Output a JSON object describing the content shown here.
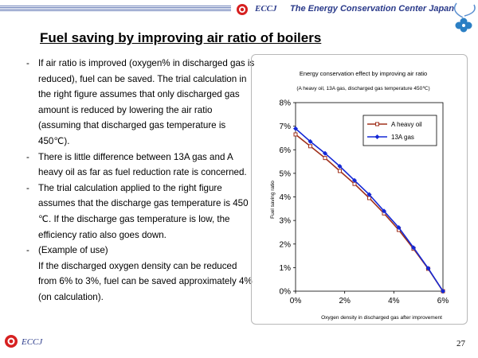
{
  "header": {
    "org_short": "ECCJ",
    "org_name": "The Energy Conservation Center Japan"
  },
  "title": "Fuel saving by improving air ratio of boilers",
  "body": [
    {
      "bullet": "-",
      "text": "If air ratio is improved (oxygen% in discharged gas is reduced), fuel can be saved. The trial calculation in the right figure assumes that only discharged gas amount is reduced by lowering the air ratio (assuming that discharged gas temperature is 450℃)."
    },
    {
      "bullet": "-",
      "text": "There is little difference between 13A gas and A heavy oil as far as fuel reduction rate is concerned."
    },
    {
      "bullet": "-",
      "text": "The trial calculation applied to the right figure assumes that the discharge gas temperature is 450 ℃. If the discharge gas temperature is low, the efficiency ratio also goes down."
    },
    {
      "bullet": "-",
      "text": "(Example of use)"
    },
    {
      "bullet": "",
      "text": "If the discharged oxygen density can be reduced from 6% to 3%, fuel can be saved approximately 4% (on calculation)."
    }
  ],
  "footer": {
    "org_short": "ECCJ",
    "page_number": "27"
  },
  "colors": {
    "heavy_oil": "#a0301c",
    "gas_13a": "#1428d6",
    "brand": "#2a3a8a"
  },
  "chart_data": {
    "type": "line",
    "title": "Energy conservation effect by improving air ratio",
    "subtitle": "(A heavy oil, 13A gas, discharged gas temperature 450℃)",
    "xlabel": "Oxygen density in discharged gas after improvement",
    "ylabel": "Fuel saving ratio",
    "xlim": [
      0,
      6
    ],
    "ylim": [
      0,
      8
    ],
    "x_ticks": [
      "0%",
      "2%",
      "4%",
      "6%"
    ],
    "y_ticks": [
      "0%",
      "1%",
      "2%",
      "3%",
      "4%",
      "5%",
      "6%",
      "7%",
      "8%"
    ],
    "grid": false,
    "legend_position": "top-right",
    "series": [
      {
        "name": "A heavy oil",
        "marker": "square",
        "color": "#a0301c",
        "x": [
          0,
          0.6,
          1.2,
          1.8,
          2.4,
          3.0,
          3.6,
          4.2,
          4.8,
          5.4,
          6.0
        ],
        "y": [
          6.65,
          6.15,
          5.65,
          5.1,
          4.55,
          3.95,
          3.3,
          2.6,
          1.8,
          0.95,
          0
        ]
      },
      {
        "name": "13A gas",
        "marker": "diamond",
        "color": "#1428d6",
        "x": [
          0,
          0.6,
          1.2,
          1.8,
          2.4,
          3.0,
          3.6,
          4.2,
          4.8,
          5.4,
          6.0
        ],
        "y": [
          6.9,
          6.35,
          5.85,
          5.3,
          4.7,
          4.1,
          3.4,
          2.7,
          1.85,
          0.97,
          0
        ]
      }
    ]
  }
}
